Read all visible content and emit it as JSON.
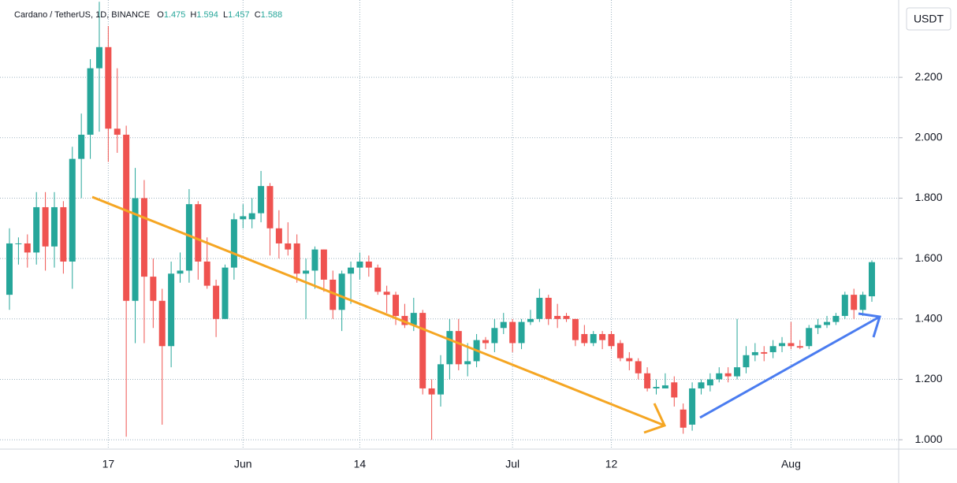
{
  "chart_data": {
    "type": "candlestick",
    "title": "Cardano / TetherUS, 1D, BINANCE",
    "ohlc_labels": [
      "O",
      "H",
      "L",
      "C"
    ],
    "currency": "USDT",
    "up_color": "#26a69a",
    "down_color": "#ef5350",
    "grid": true,
    "categories": [
      null,
      null,
      null,
      null,
      null,
      null,
      null,
      null,
      null,
      null,
      null,
      "17",
      null,
      null,
      null,
      null,
      null,
      null,
      null,
      null,
      null,
      null,
      null,
      null,
      null,
      null,
      "Jun",
      null,
      null,
      null,
      null,
      null,
      null,
      null,
      null,
      null,
      null,
      null,
      null,
      "14",
      null,
      null,
      null,
      null,
      null,
      null,
      null,
      null,
      null,
      null,
      null,
      null,
      null,
      null,
      null,
      null,
      "Jul",
      null,
      null,
      null,
      null,
      null,
      null,
      null,
      null,
      null,
      null,
      "12",
      null,
      null,
      null,
      null,
      null,
      null,
      null,
      null,
      null,
      null,
      null,
      null,
      null,
      null,
      null,
      null,
      null,
      null,
      null,
      "Aug",
      null,
      null,
      null,
      null,
      null,
      null,
      null,
      null,
      null
    ],
    "open": [
      1.48,
      1.65,
      1.65,
      1.62,
      1.77,
      1.64,
      1.77,
      1.59,
      1.93,
      2.01,
      2.23,
      2.3,
      2.03,
      2.01,
      1.46,
      1.8,
      1.54,
      1.46,
      1.31,
      1.55,
      1.56,
      1.78,
      1.59,
      1.51,
      1.4,
      1.57,
      1.73,
      1.73,
      1.75,
      1.84,
      1.7,
      1.65,
      1.65,
      1.55,
      1.56,
      1.63,
      1.53,
      1.43,
      1.55,
      1.57,
      1.59,
      1.57,
      1.49,
      1.48,
      1.41,
      1.38,
      1.42,
      1.17,
      1.15,
      1.25,
      1.36,
      1.25,
      1.26,
      1.33,
      1.32,
      1.37,
      1.39,
      1.32,
      1.39,
      1.4,
      1.47,
      1.41,
      1.41,
      1.4,
      1.35,
      1.32,
      1.35,
      1.35,
      1.32,
      1.27,
      1.26,
      1.22,
      1.17,
      1.17,
      1.19,
      1.1,
      1.05,
      1.17,
      1.18,
      1.2,
      1.22,
      1.21,
      1.24,
      1.28,
      1.29,
      1.29,
      1.31,
      1.32,
      1.31,
      1.31,
      1.37,
      1.38,
      1.39,
      1.41,
      1.48,
      1.43,
      1.475
    ],
    "high": [
      1.7,
      1.67,
      1.68,
      1.82,
      1.82,
      1.82,
      1.79,
      1.97,
      2.08,
      2.26,
      2.45,
      2.37,
      2.23,
      2.04,
      1.9,
      1.86,
      1.6,
      1.5,
      1.59,
      1.62,
      1.83,
      1.79,
      1.67,
      1.53,
      1.58,
      1.75,
      1.78,
      1.8,
      1.89,
      1.85,
      1.76,
      1.72,
      1.68,
      1.6,
      1.64,
      1.63,
      1.56,
      1.56,
      1.59,
      1.62,
      1.61,
      1.58,
      1.51,
      1.49,
      1.45,
      1.47,
      1.43,
      1.2,
      1.28,
      1.4,
      1.4,
      1.32,
      1.35,
      1.34,
      1.4,
      1.42,
      1.4,
      1.4,
      1.43,
      1.5,
      1.48,
      1.45,
      1.42,
      1.4,
      1.38,
      1.36,
      1.36,
      1.36,
      1.33,
      1.29,
      1.27,
      1.24,
      1.2,
      1.22,
      1.21,
      1.12,
      1.19,
      1.2,
      1.22,
      1.24,
      1.24,
      1.4,
      1.31,
      1.32,
      1.31,
      1.33,
      1.34,
      1.39,
      1.33,
      1.38,
      1.4,
      1.41,
      1.42,
      1.49,
      1.5,
      1.49,
      1.594
    ],
    "low": [
      1.43,
      1.58,
      1.57,
      1.58,
      1.56,
      1.57,
      1.55,
      1.5,
      1.8,
      1.93,
      2.02,
      1.92,
      1.95,
      1.01,
      1.32,
      1.32,
      1.37,
      1.05,
      1.24,
      1.52,
      1.52,
      1.53,
      1.5,
      1.34,
      1.4,
      1.53,
      1.7,
      1.7,
      1.72,
      1.61,
      1.6,
      1.61,
      1.52,
      1.4,
      1.5,
      1.49,
      1.4,
      1.36,
      1.45,
      1.53,
      1.54,
      1.48,
      1.42,
      1.38,
      1.37,
      1.36,
      1.15,
      1.0,
      1.11,
      1.2,
      1.23,
      1.21,
      1.24,
      1.3,
      1.29,
      1.35,
      1.29,
      1.3,
      1.38,
      1.39,
      1.38,
      1.37,
      1.39,
      1.31,
      1.31,
      1.31,
      1.3,
      1.3,
      1.26,
      1.23,
      1.2,
      1.16,
      1.15,
      1.17,
      1.11,
      1.02,
      1.03,
      1.15,
      1.16,
      1.19,
      1.19,
      1.2,
      1.22,
      1.26,
      1.26,
      1.27,
      1.29,
      1.3,
      1.3,
      1.3,
      1.35,
      1.37,
      1.38,
      1.4,
      1.4,
      1.41,
      1.457
    ],
    "close": [
      1.65,
      1.65,
      1.62,
      1.77,
      1.64,
      1.77,
      1.59,
      1.93,
      2.01,
      2.23,
      2.3,
      2.03,
      2.01,
      1.46,
      1.8,
      1.54,
      1.46,
      1.31,
      1.55,
      1.56,
      1.78,
      1.59,
      1.51,
      1.4,
      1.57,
      1.73,
      1.74,
      1.75,
      1.84,
      1.7,
      1.65,
      1.63,
      1.55,
      1.56,
      1.63,
      1.53,
      1.43,
      1.55,
      1.57,
      1.59,
      1.57,
      1.49,
      1.48,
      1.41,
      1.38,
      1.42,
      1.17,
      1.15,
      1.25,
      1.36,
      1.25,
      1.26,
      1.33,
      1.32,
      1.37,
      1.39,
      1.32,
      1.39,
      1.4,
      1.47,
      1.4,
      1.4,
      1.4,
      1.33,
      1.32,
      1.35,
      1.33,
      1.31,
      1.27,
      1.26,
      1.22,
      1.17,
      1.175,
      1.18,
      1.14,
      1.04,
      1.17,
      1.19,
      1.2,
      1.22,
      1.21,
      1.24,
      1.28,
      1.29,
      1.285,
      1.31,
      1.32,
      1.31,
      1.305,
      1.37,
      1.38,
      1.39,
      1.41,
      1.48,
      1.43,
      1.48,
      1.588
    ],
    "ylim": [
      0.969,
      2.456
    ],
    "yticks": [
      {
        "value": 1.0,
        "label": "1.000"
      },
      {
        "value": 1.2,
        "label": "1.200"
      },
      {
        "value": 1.4,
        "label": "1.400"
      },
      {
        "value": 1.6,
        "label": "1.600"
      },
      {
        "value": 1.8,
        "label": "1.800"
      },
      {
        "value": 2.0,
        "label": "2.000"
      },
      {
        "value": 2.2,
        "label": "2.200"
      }
    ]
  }
}
